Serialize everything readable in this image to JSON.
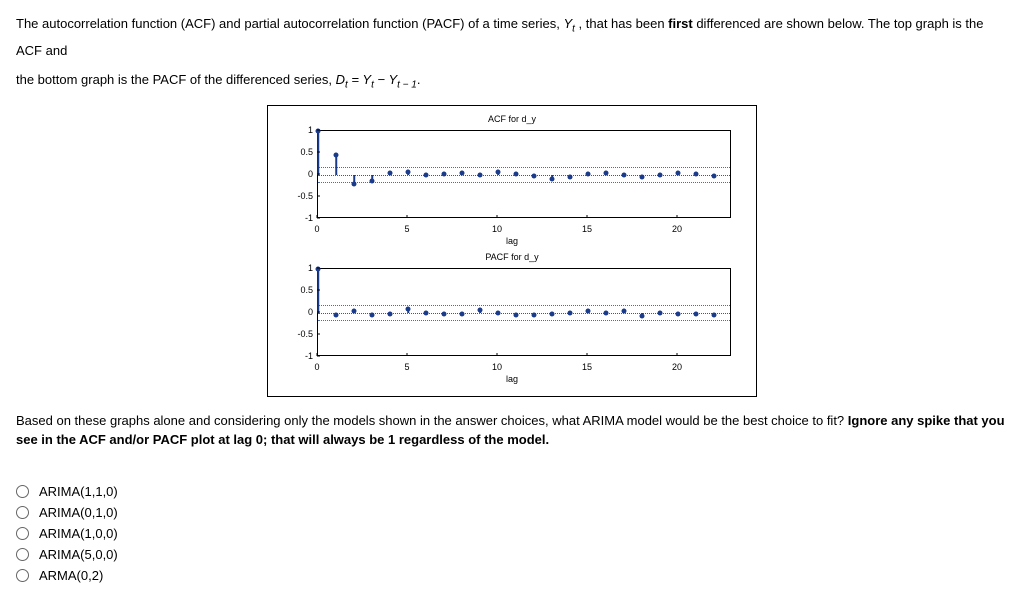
{
  "question": {
    "line1_a": "The autocorrelation function (ACF) and partial autocorrelation function (PACF) of a time series, ",
    "line1_var": "Y",
    "line1_sub": "t",
    "line1_b": " , that has been ",
    "line1_bold": "first",
    "line1_c": " differenced are shown below. The top graph is the ACF and",
    "line2_a": "the bottom graph is the PACF of the differenced series, ",
    "line2_eq": "D",
    "line2_eq_sub1": "t",
    "line2_eq_mid": " = Y",
    "line2_eq_sub2": "t",
    "line2_eq_minus": " − Y",
    "line2_eq_sub3": "t − 1",
    "line2_end": "."
  },
  "followup": {
    "a": "Based on these graphs alone and considering only the models shown in the answer choices, what ARIMA model would be the best choice to fit? ",
    "bold": "Ignore any spike that you see in the ACF and/or PACF plot at lag 0; that will always be 1 regardless of the model."
  },
  "answers": [
    "ARIMA(1,1,0)",
    "ARIMA(0,1,0)",
    "ARIMA(1,0,0)",
    "ARIMA(5,0,0)",
    "ARMA(0,2)"
  ],
  "acf": {
    "title": "ACF for d_y",
    "xlabel": "lag",
    "ylim": [
      -1,
      1
    ],
    "yticks": [
      -1,
      -0.5,
      0,
      0.5,
      1
    ],
    "xlim": [
      0,
      23
    ],
    "xticks": [
      0,
      5,
      10,
      15,
      20
    ],
    "ci": 0.18,
    "series": [
      {
        "lag": 0,
        "v": 1.0
      },
      {
        "lag": 1,
        "v": 0.45
      },
      {
        "lag": 2,
        "v": -0.22
      },
      {
        "lag": 3,
        "v": -0.15
      },
      {
        "lag": 4,
        "v": 0.03
      },
      {
        "lag": 5,
        "v": 0.06
      },
      {
        "lag": 6,
        "v": -0.02
      },
      {
        "lag": 7,
        "v": 0.01
      },
      {
        "lag": 8,
        "v": 0.04
      },
      {
        "lag": 9,
        "v": -0.01
      },
      {
        "lag": 10,
        "v": 0.05
      },
      {
        "lag": 11,
        "v": 0.02
      },
      {
        "lag": 12,
        "v": -0.03
      },
      {
        "lag": 13,
        "v": -0.1
      },
      {
        "lag": 14,
        "v": -0.06
      },
      {
        "lag": 15,
        "v": 0.01
      },
      {
        "lag": 16,
        "v": 0.03
      },
      {
        "lag": 17,
        "v": -0.01
      },
      {
        "lag": 18,
        "v": -0.06
      },
      {
        "lag": 19,
        "v": -0.02
      },
      {
        "lag": 20,
        "v": 0.04
      },
      {
        "lag": 21,
        "v": 0.01
      },
      {
        "lag": 22,
        "v": -0.03
      }
    ]
  },
  "pacf": {
    "title": "PACF for d_y",
    "xlabel": "lag",
    "ylim": [
      -1,
      1
    ],
    "yticks": [
      -1,
      -0.5,
      0,
      0.5,
      1
    ],
    "xlim": [
      0,
      23
    ],
    "xticks": [
      0,
      5,
      10,
      15,
      20
    ],
    "ci": 0.18,
    "series": [
      {
        "lag": 0,
        "v": 1.0
      },
      {
        "lag": 1,
        "v": -0.05
      },
      {
        "lag": 2,
        "v": 0.03
      },
      {
        "lag": 3,
        "v": -0.06
      },
      {
        "lag": 4,
        "v": -0.04
      },
      {
        "lag": 5,
        "v": 0.07
      },
      {
        "lag": 6,
        "v": -0.02
      },
      {
        "lag": 7,
        "v": -0.04
      },
      {
        "lag": 8,
        "v": -0.03
      },
      {
        "lag": 9,
        "v": 0.06
      },
      {
        "lag": 10,
        "v": -0.01
      },
      {
        "lag": 11,
        "v": -0.05
      },
      {
        "lag": 12,
        "v": -0.06
      },
      {
        "lag": 13,
        "v": -0.04
      },
      {
        "lag": 14,
        "v": -0.02
      },
      {
        "lag": 15,
        "v": 0.04
      },
      {
        "lag": 16,
        "v": -0.01
      },
      {
        "lag": 17,
        "v": 0.03
      },
      {
        "lag": 18,
        "v": -0.08
      },
      {
        "lag": 19,
        "v": -0.02
      },
      {
        "lag": 20,
        "v": -0.04
      },
      {
        "lag": 21,
        "v": -0.03
      },
      {
        "lag": 22,
        "v": -0.05
      }
    ]
  },
  "colors": {
    "stem": "#1a3a8a",
    "ci": "#4a6aa8",
    "zero": "#555555",
    "text": "#000000"
  }
}
